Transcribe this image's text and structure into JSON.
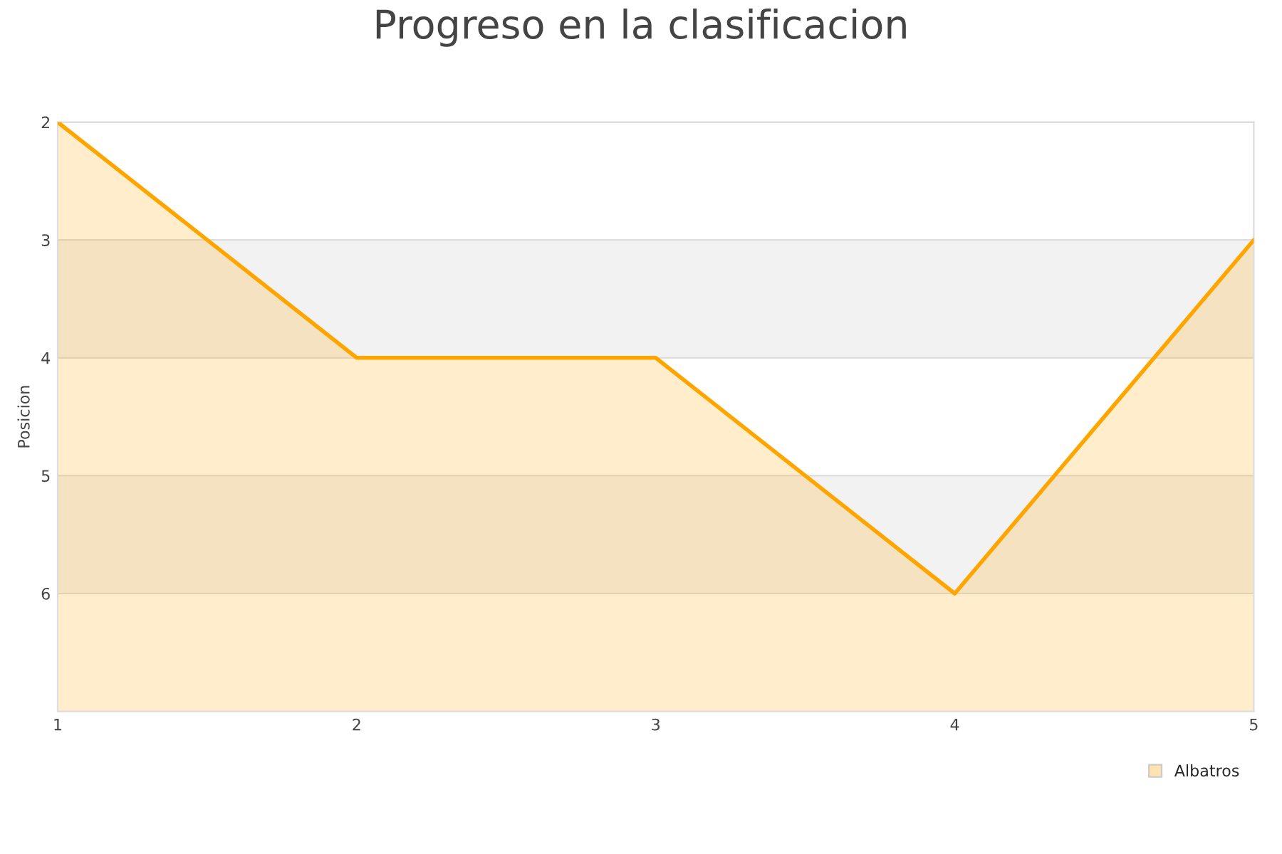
{
  "chart_data": {
    "type": "area",
    "title": "Progreso en la clasificacion",
    "ylabel": "Posicion",
    "x": [
      1,
      2,
      3,
      4,
      5
    ],
    "series": [
      {
        "name": "Albatros",
        "color": "#ffa500",
        "values": [
          2,
          4,
          4,
          6,
          3
        ]
      }
    ],
    "xlim": [
      1,
      5
    ],
    "xticks": [
      1,
      2,
      3,
      4,
      5
    ],
    "ylim": [
      7,
      2
    ],
    "yticks": [
      2,
      3,
      4,
      5,
      6
    ],
    "bands": [
      {
        "axis": "y",
        "from": 3,
        "to": 4,
        "color": "#f2f2f2"
      },
      {
        "axis": "y",
        "from": 5,
        "to": 6,
        "color": "#f2f2f2"
      }
    ],
    "grid": "y",
    "legend": "bottom right",
    "marker": "none",
    "line_style": "solid"
  }
}
